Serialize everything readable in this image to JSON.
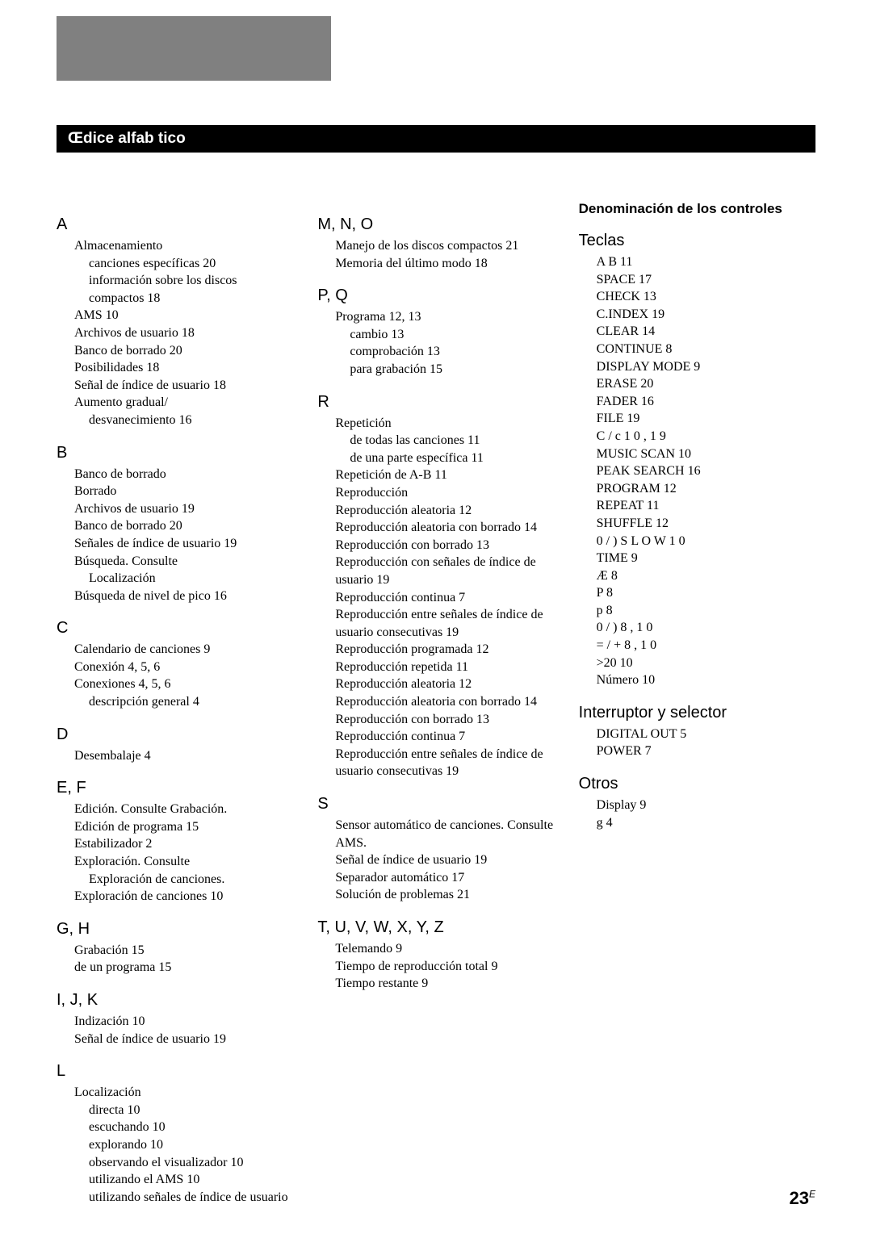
{
  "title_bar": "Œdice alfab tico",
  "page_number": "23",
  "page_suffix": "E",
  "col1": {
    "A": {
      "head": "A",
      "entries": [
        {
          "t": "Almacenamiento"
        },
        {
          "t": "canciones específicas  20",
          "sub": true
        },
        {
          "t": "información sobre los discos compactos  18",
          "sub": true
        },
        {
          "t": "AMS  10"
        },
        {
          "t": "Archivos de usuario  18"
        },
        {
          "t": "Banco de borrado  20"
        },
        {
          "t": "Posibilidades  18"
        },
        {
          "t": "Señal de índice de usuario  18"
        },
        {
          "t": "Aumento gradual/"
        },
        {
          "t": "desvanecimiento  16",
          "sub": true
        }
      ]
    },
    "B": {
      "head": "B",
      "entries": [
        {
          "t": "Banco de borrado"
        },
        {
          "t": "Borrado"
        },
        {
          "t": "Archivos de usuario  19"
        },
        {
          "t": "Banco de borrado  20"
        },
        {
          "t": "Señales de índice de usuario  19"
        },
        {
          "t": "Búsqueda. Consulte"
        },
        {
          "t": "Localización",
          "sub": true
        },
        {
          "t": "Búsqueda de nivel de pico  16"
        }
      ]
    },
    "C": {
      "head": "C",
      "entries": [
        {
          "t": "Calendario de canciones  9"
        },
        {
          "t": "Conexión  4, 5, 6"
        },
        {
          "t": "Conexiones  4, 5, 6"
        },
        {
          "t": "descripción general  4",
          "sub": true
        }
      ]
    },
    "D": {
      "head": "D",
      "entries": [
        {
          "t": "Desembalaje  4"
        }
      ]
    },
    "EF": {
      "head": "E, F",
      "entries": [
        {
          "t": "Edición.  Consulte Grabación."
        },
        {
          "t": "Edición de programa  15"
        },
        {
          "t": "Estabilizador  2"
        },
        {
          "t": "Exploración. Consulte"
        },
        {
          "t": "Exploración de canciones.",
          "sub": true
        },
        {
          "t": "Exploración de canciones  10"
        }
      ]
    },
    "GH": {
      "head": "G, H",
      "entries": [
        {
          "t": "Grabación  15"
        },
        {
          "t": "de un programa  15"
        }
      ]
    },
    "IJK": {
      "head": "I, J, K",
      "entries": [
        {
          "t": "Indización  10"
        },
        {
          "t": "Señal de índice de usuario  19"
        }
      ]
    },
    "L": {
      "head": "L",
      "entries": [
        {
          "t": "Localización"
        },
        {
          "t": "directa  10",
          "sub": true
        },
        {
          "t": "escuchando  10",
          "sub": true
        },
        {
          "t": "explorando  10",
          "sub": true
        },
        {
          "t": "observando el visualizador  10",
          "sub": true
        },
        {
          "t": "utilizando el AMS  10",
          "sub": true
        },
        {
          "t": "utilizando señales de índice de usuario",
          "sub": true
        }
      ]
    }
  },
  "col2": {
    "MNO": {
      "head": "M, N, O",
      "entries": [
        {
          "t": "Manejo de los discos compactos  21"
        },
        {
          "t": "Memoria del último modo  18"
        }
      ]
    },
    "PQ": {
      "head": "P, Q",
      "entries": [
        {
          "t": "Programa  12, 13"
        },
        {
          "t": "cambio  13",
          "sub": true
        },
        {
          "t": "comprobación  13",
          "sub": true
        },
        {
          "t": "para grabación  15",
          "sub": true
        }
      ]
    },
    "R": {
      "head": "R",
      "entries": [
        {
          "t": "Repetición"
        },
        {
          "t": "de todas las canciones  11",
          "sub": true
        },
        {
          "t": "de una parte específica  11",
          "sub": true
        },
        {
          "t": "Repetición de A-B  11"
        },
        {
          "t": "Reproducción"
        },
        {
          "t": "Reproducción aleatoria  12"
        },
        {
          "t": "Reproducción aleatoria con borrado  14"
        },
        {
          "t": "Reproducción con borrado  13"
        },
        {
          "t": "Reproducción con señales de índice de usuario  19"
        },
        {
          "t": "Reproducción continua  7"
        },
        {
          "t": "Reproducción entre señales de índice de usuario consecutivas  19"
        },
        {
          "t": "Reproducción programada  12"
        },
        {
          "t": "Reproducción repetida  11"
        },
        {
          "t": "Reproducción aleatoria  12"
        },
        {
          "t": "Reproducción aleatoria con borrado  14"
        },
        {
          "t": "Reproducción con borrado  13"
        },
        {
          "t": "Reproducción continua  7"
        },
        {
          "t": "Reproducción entre señales de índice de usuario consecutivas  19"
        }
      ]
    },
    "S": {
      "head": "S",
      "entries": [
        {
          "t": "Sensor automático de canciones.  Consulte AMS."
        },
        {
          "t": "Señal de índice de usuario  19"
        },
        {
          "t": "Separador automático  17"
        },
        {
          "t": "Solución de problemas  21"
        }
      ]
    },
    "TZ": {
      "head": "T, U, V, W, X, Y, Z",
      "entries": [
        {
          "t": "Telemando  9"
        },
        {
          "t": "Tiempo de reproducción total  9"
        },
        {
          "t": "Tiempo restante  9"
        }
      ]
    }
  },
  "col3": {
    "header": "Denominación de los controles",
    "Teclas": {
      "head": "Teclas",
      "entries": [
        {
          "t": "A    B    11"
        },
        {
          "t": "SPACE   17"
        },
        {
          "t": "CHECK   13"
        },
        {
          "t": "C.INDEX   19"
        },
        {
          "t": "CLEAR   14"
        },
        {
          "t": "CONTINUE   8"
        },
        {
          "t": "DISPLAY MODE   9"
        },
        {
          "t": "ERASE   20"
        },
        {
          "t": "FADER   16"
        },
        {
          "t": "FILE   19"
        },
        {
          "t": "C / c    1 0 ,    1 9"
        },
        {
          "t": "MUSIC SCAN   10"
        },
        {
          "t": "PEAK SEARCH   16"
        },
        {
          "t": "PROGRAM   12"
        },
        {
          "t": "REPEAT   11"
        },
        {
          "t": "SHUFFLE   12"
        },
        {
          "t": "0 / )   S L O W    1 0"
        },
        {
          "t": "TIME   9"
        },
        {
          "t": "Æ    8"
        },
        {
          "t": "P    8"
        },
        {
          "t": "p    8"
        },
        {
          "t": "0 / )    8 ,    1 0"
        },
        {
          "t": "= / +    8 ,    1 0"
        },
        {
          "t": ">20   10"
        },
        {
          "t": "Número 10"
        }
      ]
    },
    "Interruptor": {
      "head": "Interruptor y selector",
      "entries": [
        {
          "t": "DIGITAL OUT   5"
        },
        {
          "t": "POWER   7"
        }
      ]
    },
    "Otros": {
      "head": "Otros",
      "entries": [
        {
          "t": "Display   9"
        },
        {
          "t": "g    4"
        }
      ]
    }
  }
}
